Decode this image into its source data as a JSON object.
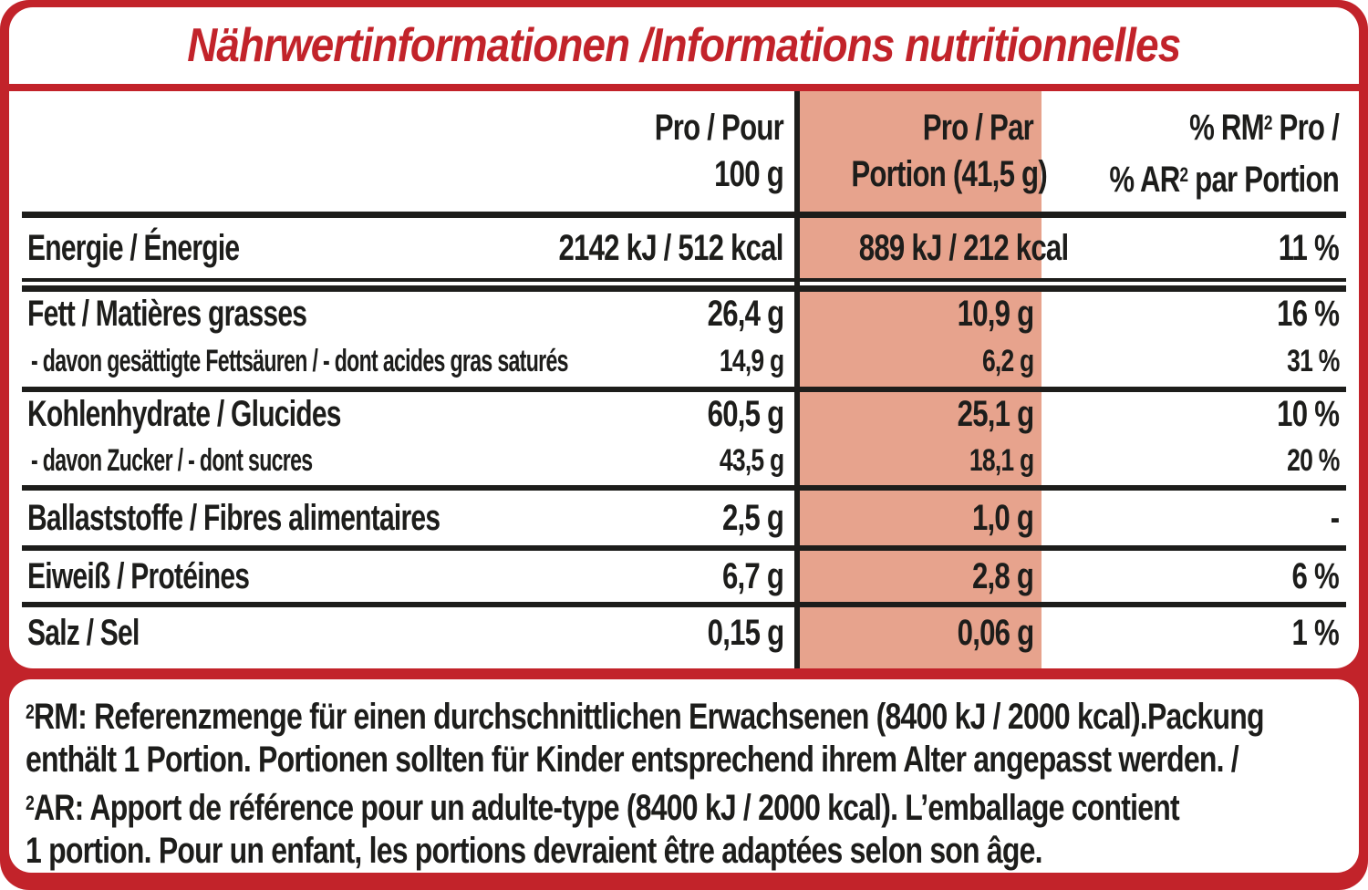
{
  "colors": {
    "red": "#c2232a",
    "salmon": "#e7a38d",
    "text_black": "#1d1d1b"
  },
  "header": {
    "title": "Nährwertinformationen /Informations nutritionnelles"
  },
  "table": {
    "columns": {
      "per100": {
        "line1": "Pro / Pour",
        "line2": "100 g"
      },
      "portion": {
        "line1": "Pro / Par",
        "line2": "Portion (41,5 g)"
      },
      "pct": {
        "l1a": "% RM",
        "sup": "2",
        "l1b": " Pro /",
        "l2a": "% AR",
        "l2b": " par Portion"
      }
    },
    "rows": [
      {
        "label": "Energie / Énergie",
        "per100": "2142 kJ / 512 kcal",
        "portion": "889 kJ / 212 kcal",
        "pct": "11 %"
      },
      {
        "label": "Fett / Matières grasses",
        "per100": "26,4 g",
        "portion": "10,9 g",
        "pct": "16 %"
      },
      {
        "label": "- davon gesättigte Fettsäuren / - dont acides gras saturés",
        "per100": "14,9 g",
        "portion": "6,2 g",
        "pct": "31 %"
      },
      {
        "label": "Kohlenhydrate / Glucides",
        "per100": "60,5 g",
        "portion": "25,1 g",
        "pct": "10 %"
      },
      {
        "label": "- davon Zucker / - dont sucres",
        "per100": "43,5 g",
        "portion": "18,1 g",
        "pct": "20 %"
      },
      {
        "label": "Ballaststoffe / Fibres alimentaires",
        "per100": "2,5 g",
        "portion": "1,0 g",
        "pct": "-"
      },
      {
        "label": "Eiweiß / Protéines",
        "per100": "6,7 g",
        "portion": "2,8 g",
        "pct": "6 %"
      },
      {
        "label": "Salz / Sel",
        "per100": "0,15 g",
        "portion": "0,06 g",
        "pct": "1 %"
      }
    ]
  },
  "footnote": {
    "sup1": "2",
    "line1": "RM: Referenzmenge für einen durchschnittlichen Erwachsenen (8400 kJ / 2000 kcal).Packung",
    "line2": "enthält 1 Portion. Portionen sollten für Kinder entsprechend ihrem Alter angepasst werden. /",
    "sup3": "2",
    "line3": "AR: Apport de référence pour un adulte-type (8400 kJ / 2000 kcal). L’emballage contient",
    "line4": "1 portion. Pour un enfant, les portions devraient être adaptées selon son âge."
  }
}
